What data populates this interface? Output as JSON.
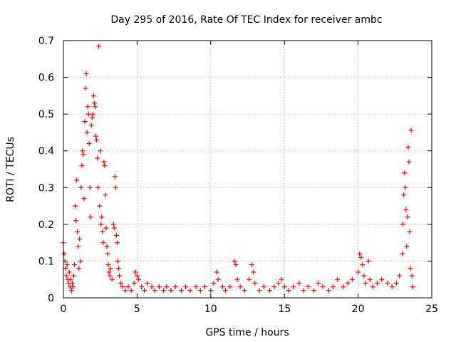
{
  "chart_data": {
    "type": "scatter",
    "title": "Day 295 of 2016, Rate Of TEC Index for receiver ambc",
    "xlabel": "GPS time / hours",
    "ylabel": "ROTI / TECUs",
    "xlim": [
      0,
      25
    ],
    "ylim": [
      0,
      0.7
    ],
    "xticks": [
      0,
      5,
      10,
      15,
      20,
      25
    ],
    "yticks": [
      0,
      0.1,
      0.2,
      0.3,
      0.4,
      0.5,
      0.6,
      0.7
    ],
    "xtick_labels": [
      "0",
      "5",
      "10",
      "15",
      "20",
      "25"
    ],
    "ytick_labels": [
      "0",
      "0.1",
      "0.2",
      "0.3",
      "0.4",
      "0.5",
      "0.6",
      "0.7"
    ],
    "grid": true,
    "marker": "+",
    "color": "#ff0000",
    "series": [
      {
        "name": "ROTI",
        "points": [
          [
            0.0,
            0.15
          ],
          [
            0.05,
            0.12
          ],
          [
            0.1,
            0.1
          ],
          [
            0.15,
            0.08
          ],
          [
            0.2,
            0.06
          ],
          [
            0.25,
            0.09
          ],
          [
            0.3,
            0.05
          ],
          [
            0.35,
            0.04
          ],
          [
            0.4,
            0.07
          ],
          [
            0.45,
            0.03
          ],
          [
            0.5,
            0.05
          ],
          [
            0.55,
            0.02
          ],
          [
            0.6,
            0.04
          ],
          [
            0.65,
            0.03
          ],
          [
            0.7,
            0.06
          ],
          [
            0.75,
            0.09
          ],
          [
            0.8,
            0.25
          ],
          [
            0.85,
            0.21
          ],
          [
            0.9,
            0.32
          ],
          [
            0.95,
            0.18
          ],
          [
            1.0,
            0.14
          ],
          [
            1.05,
            0.08
          ],
          [
            1.1,
            0.16
          ],
          [
            1.15,
            0.1
          ],
          [
            1.2,
            0.3
          ],
          [
            1.25,
            0.36
          ],
          [
            1.3,
            0.4
          ],
          [
            1.35,
            0.39
          ],
          [
            1.4,
            0.27
          ],
          [
            1.45,
            0.48
          ],
          [
            1.5,
            0.57
          ],
          [
            1.55,
            0.61
          ],
          [
            1.6,
            0.45
          ],
          [
            1.65,
            0.52
          ],
          [
            1.7,
            0.5
          ],
          [
            1.75,
            0.42
          ],
          [
            1.8,
            0.3
          ],
          [
            1.85,
            0.22
          ],
          [
            1.9,
            0.47
          ],
          [
            1.95,
            0.49
          ],
          [
            2.0,
            0.5
          ],
          [
            2.05,
            0.55
          ],
          [
            2.1,
            0.53
          ],
          [
            2.15,
            0.52
          ],
          [
            2.2,
            0.44
          ],
          [
            2.25,
            0.43
          ],
          [
            2.3,
            0.38
          ],
          [
            2.35,
            0.3
          ],
          [
            2.4,
            0.685
          ],
          [
            2.45,
            0.25
          ],
          [
            2.5,
            0.4
          ],
          [
            2.55,
            0.2
          ],
          [
            2.6,
            0.22
          ],
          [
            2.65,
            0.18
          ],
          [
            2.7,
            0.15
          ],
          [
            2.75,
            0.37
          ],
          [
            2.8,
            0.36
          ],
          [
            2.85,
            0.28
          ],
          [
            2.9,
            0.19
          ],
          [
            2.95,
            0.14
          ],
          [
            3.0,
            0.12
          ],
          [
            3.05,
            0.09
          ],
          [
            3.1,
            0.07
          ],
          [
            3.15,
            0.06
          ],
          [
            3.2,
            0.08
          ],
          [
            3.3,
            0.05
          ],
          [
            3.4,
            0.2
          ],
          [
            3.45,
            0.19
          ],
          [
            3.5,
            0.33
          ],
          [
            3.55,
            0.3
          ],
          [
            3.6,
            0.17
          ],
          [
            3.65,
            0.15
          ],
          [
            3.7,
            0.1
          ],
          [
            3.75,
            0.08
          ],
          [
            3.8,
            0.06
          ],
          [
            3.9,
            0.04
          ],
          [
            4.0,
            0.03
          ],
          [
            4.2,
            0.02
          ],
          [
            4.4,
            0.03
          ],
          [
            4.6,
            0.02
          ],
          [
            4.8,
            0.04
          ],
          [
            4.9,
            0.07
          ],
          [
            5.0,
            0.06
          ],
          [
            5.1,
            0.05
          ],
          [
            5.3,
            0.03
          ],
          [
            5.5,
            0.02
          ],
          [
            5.7,
            0.04
          ],
          [
            6.0,
            0.03
          ],
          [
            6.2,
            0.02
          ],
          [
            6.5,
            0.03
          ],
          [
            6.8,
            0.02
          ],
          [
            7.0,
            0.03
          ],
          [
            7.3,
            0.02
          ],
          [
            7.6,
            0.03
          ],
          [
            8.0,
            0.02
          ],
          [
            8.3,
            0.03
          ],
          [
            8.6,
            0.02
          ],
          [
            9.0,
            0.03
          ],
          [
            9.3,
            0.02
          ],
          [
            9.6,
            0.03
          ],
          [
            10.0,
            0.02
          ],
          [
            10.2,
            0.04
          ],
          [
            10.4,
            0.07
          ],
          [
            10.5,
            0.05
          ],
          [
            10.8,
            0.03
          ],
          [
            11.0,
            0.02
          ],
          [
            11.3,
            0.03
          ],
          [
            11.6,
            0.1
          ],
          [
            11.7,
            0.09
          ],
          [
            11.8,
            0.05
          ],
          [
            12.0,
            0.03
          ],
          [
            12.3,
            0.02
          ],
          [
            12.6,
            0.05
          ],
          [
            12.8,
            0.09
          ],
          [
            12.9,
            0.07
          ],
          [
            13.0,
            0.04
          ],
          [
            13.3,
            0.02
          ],
          [
            13.6,
            0.03
          ],
          [
            14.0,
            0.02
          ],
          [
            14.3,
            0.03
          ],
          [
            14.6,
            0.04
          ],
          [
            14.8,
            0.05
          ],
          [
            15.0,
            0.03
          ],
          [
            15.3,
            0.02
          ],
          [
            15.6,
            0.03
          ],
          [
            16.0,
            0.04
          ],
          [
            16.3,
            0.02
          ],
          [
            16.6,
            0.03
          ],
          [
            17.0,
            0.02
          ],
          [
            17.3,
            0.04
          ],
          [
            17.6,
            0.03
          ],
          [
            18.0,
            0.02
          ],
          [
            18.3,
            0.03
          ],
          [
            18.6,
            0.05
          ],
          [
            19.0,
            0.03
          ],
          [
            19.3,
            0.04
          ],
          [
            19.6,
            0.05
          ],
          [
            20.0,
            0.07
          ],
          [
            20.1,
            0.12
          ],
          [
            20.2,
            0.11
          ],
          [
            20.3,
            0.09
          ],
          [
            20.4,
            0.06
          ],
          [
            20.5,
            0.04
          ],
          [
            20.7,
            0.1
          ],
          [
            20.8,
            0.05
          ],
          [
            21.0,
            0.03
          ],
          [
            21.3,
            0.04
          ],
          [
            21.6,
            0.05
          ],
          [
            22.0,
            0.04
          ],
          [
            22.3,
            0.03
          ],
          [
            22.6,
            0.04
          ],
          [
            22.8,
            0.06
          ],
          [
            23.0,
            0.12
          ],
          [
            23.05,
            0.2
          ],
          [
            23.1,
            0.28
          ],
          [
            23.15,
            0.34
          ],
          [
            23.2,
            0.3
          ],
          [
            23.25,
            0.24
          ],
          [
            23.3,
            0.14
          ],
          [
            23.35,
            0.22
          ],
          [
            23.4,
            0.41
          ],
          [
            23.45,
            0.37
          ],
          [
            23.5,
            0.18
          ],
          [
            23.55,
            0.08
          ],
          [
            23.6,
            0.456
          ],
          [
            23.65,
            0.06
          ],
          [
            23.7,
            0.03
          ]
        ]
      }
    ]
  }
}
